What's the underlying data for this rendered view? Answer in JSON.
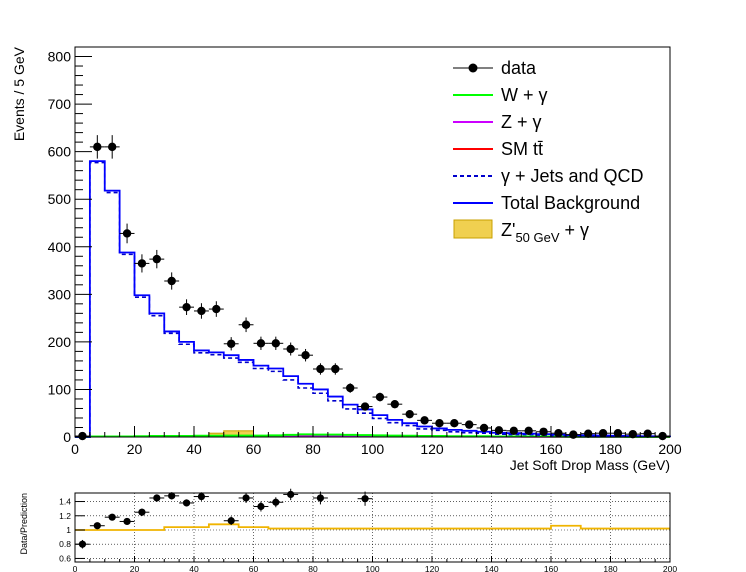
{
  "colors": {
    "data": "#000000",
    "w_gamma": "#00ff00",
    "z_gamma": "#cc00ff",
    "sm_ttbar": "#ff0000",
    "gamma_jets_qcd": "#0000cc",
    "total_background": "#0000ff",
    "signal_fill": "#f0d050",
    "signal_line": "#c8a000",
    "ratio_line": "#f0b400",
    "grid": "#000000"
  },
  "chart_data": [
    {
      "type": "line",
      "title": "",
      "xlabel": "Jet Soft Drop Mass (GeV)",
      "ylabel": "Events / 5 GeV",
      "xlim": [
        0,
        200
      ],
      "ylim": [
        0,
        820
      ],
      "x_ticks": [
        0,
        20,
        40,
        60,
        80,
        100,
        120,
        140,
        160,
        180,
        200
      ],
      "y_ticks": [
        0,
        100,
        200,
        300,
        400,
        500,
        600,
        700,
        800
      ],
      "grid": false,
      "legend_position": "top-right",
      "legend": [
        {
          "key": "data",
          "label": "data",
          "style": "marker"
        },
        {
          "key": "w_gamma",
          "label": "W + γ",
          "style": "line"
        },
        {
          "key": "z_gamma",
          "label": "Z + γ",
          "style": "line"
        },
        {
          "key": "sm_ttbar",
          "label": "SM tt̄",
          "style": "line"
        },
        {
          "key": "gamma_jets_qcd",
          "label": "γ + Jets and QCD",
          "style": "dashed"
        },
        {
          "key": "total_background",
          "label": "Total Background",
          "style": "line"
        },
        {
          "key": "signal",
          "label": "Z'",
          "label_sub": "50 GeV",
          "label_suffix": " + γ",
          "style": "fill"
        }
      ],
      "bin_edges": [
        0,
        5,
        10,
        15,
        20,
        25,
        30,
        35,
        40,
        45,
        50,
        55,
        60,
        65,
        70,
        75,
        80,
        85,
        90,
        95,
        100,
        105,
        110,
        115,
        120,
        125,
        130,
        135,
        140,
        145,
        150,
        155,
        160,
        165,
        170,
        175,
        180,
        185,
        190,
        195,
        200
      ],
      "series": [
        {
          "key": "data",
          "name": "data",
          "x": [
            2.5,
            7.5,
            12.5,
            17.5,
            22.5,
            27.5,
            32.5,
            37.5,
            42.5,
            47.5,
            52.5,
            57.5,
            62.5,
            67.5,
            72.5,
            77.5,
            82.5,
            87.5,
            92.5,
            97.5,
            102.5,
            107.5,
            112.5,
            117.5,
            122.5,
            127.5,
            132.5,
            137.5,
            142.5,
            147.5,
            152.5,
            157.5,
            162.5,
            167.5,
            172.5,
            177.5,
            182.5,
            187.5,
            192.5,
            197.5
          ],
          "y": [
            2,
            610,
            610,
            428,
            365,
            374,
            328,
            273,
            265,
            269,
            196,
            236,
            197,
            197,
            185,
            172,
            143,
            143,
            103,
            64,
            84,
            69,
            48,
            35,
            29,
            29,
            26,
            19,
            14,
            13,
            13,
            11,
            8,
            5,
            7,
            8,
            8,
            6,
            7,
            2
          ],
          "yerr": [
            1.4,
            24.7,
            24.7,
            20.7,
            19.1,
            19.3,
            18.1,
            16.5,
            16.3,
            16.4,
            14.0,
            15.4,
            14.0,
            14.0,
            13.6,
            13.1,
            12.0,
            12.0,
            10.1,
            8.0,
            9.2,
            8.3,
            6.9,
            5.9,
            5.4,
            5.4,
            5.1,
            4.4,
            3.7,
            3.6,
            3.6,
            3.3,
            2.8,
            2.2,
            2.6,
            2.8,
            2.8,
            2.4,
            2.6,
            1.4
          ]
        },
        {
          "key": "total_background",
          "name": "Total Background",
          "values": [
            0,
            580,
            518,
            388,
            298,
            260,
            222,
            200,
            182,
            178,
            172,
            162,
            150,
            144,
            128,
            112,
            100,
            85,
            68,
            58,
            46,
            36,
            29,
            22,
            18,
            15,
            13,
            11,
            9,
            8,
            7,
            6,
            5,
            4,
            3.5,
            3,
            2.5,
            2,
            1.5,
            1
          ]
        },
        {
          "key": "gamma_jets_qcd",
          "name": "γ + Jets and QCD",
          "values": [
            0,
            577,
            514,
            384,
            294,
            255,
            218,
            195,
            177,
            173,
            166,
            157,
            144,
            138,
            120,
            103,
            92,
            76,
            59,
            50,
            39,
            30,
            24,
            17,
            14,
            11,
            9,
            8,
            6,
            5,
            5,
            4,
            3,
            3,
            2.5,
            2,
            1.8,
            1.4,
            1,
            0.7
          ]
        },
        {
          "key": "w_gamma",
          "name": "W + γ",
          "values": [
            0,
            1,
            1,
            1,
            1.5,
            2,
            2,
            2,
            2.5,
            2.5,
            3,
            3,
            3,
            3.5,
            4.5,
            5.5,
            5,
            5,
            4.5,
            4,
            3.5,
            3,
            2.5,
            2,
            2,
            1.5,
            1.5,
            1.5,
            1,
            1,
            1,
            1,
            0.8,
            0.6,
            0.5,
            0.5,
            0.4,
            0.3,
            0.3,
            0.2
          ]
        },
        {
          "key": "z_gamma",
          "name": "Z + γ",
          "values": [
            0,
            0.4,
            0.4,
            0.4,
            0.5,
            0.6,
            0.7,
            0.8,
            0.8,
            0.9,
            1,
            1,
            1.2,
            1.4,
            1.6,
            1.8,
            1.8,
            1.6,
            1.5,
            1.3,
            1.2,
            1,
            0.9,
            0.7,
            0.6,
            0.5,
            0.5,
            0.4,
            0.3,
            0.3,
            0.3,
            0.2,
            0.2,
            0.2,
            0.1,
            0.1,
            0.1,
            0.1,
            0.1,
            0.1
          ]
        },
        {
          "key": "sm_ttbar",
          "name": "SM tt̄",
          "values": [
            0,
            0.4,
            0.5,
            0.6,
            0.8,
            1,
            1.2,
            1.4,
            1.6,
            1.8,
            2,
            2.1,
            2.2,
            2.3,
            2.4,
            2.4,
            2.2,
            2,
            1.8,
            1.6,
            1.4,
            1.2,
            1,
            0.9,
            0.8,
            0.7,
            0.6,
            0.5,
            0.4,
            0.4,
            0.3,
            0.3,
            0.3,
            0.2,
            0.2,
            0.2,
            0.2,
            0.1,
            0.1,
            0.1
          ]
        },
        {
          "key": "signal",
          "name": "Z' 50 GeV + γ",
          "values": [
            0,
            0,
            0,
            0,
            0,
            0,
            0,
            0,
            3,
            8,
            13,
            13,
            3,
            1,
            0,
            0,
            0,
            0,
            0,
            0,
            0,
            0,
            0,
            0,
            0,
            0,
            0,
            0,
            0,
            0,
            0,
            0,
            0,
            0,
            0,
            0,
            0,
            0,
            0,
            0
          ]
        }
      ]
    },
    {
      "type": "scatter",
      "title": "",
      "xlabel": "",
      "ylabel": "Data/Prediction",
      "xlim": [
        0,
        200
      ],
      "ylim": [
        0.55,
        1.52
      ],
      "x_ticks": [
        0,
        20,
        40,
        60,
        80,
        100,
        120,
        140,
        160,
        180,
        200
      ],
      "y_ticks": [
        0.6,
        0.8,
        1,
        1.2,
        1.4
      ],
      "y_tick_labels": [
        "0.6",
        "0.8",
        "1",
        "1.2",
        "1.4"
      ],
      "grid": true,
      "series": [
        {
          "key": "ratio_points",
          "name": "data",
          "x": [
            2.5,
            7.5,
            12.5,
            17.5,
            22.5,
            27.5,
            32.5,
            37.5,
            42.5,
            52.5,
            57.5,
            62.5,
            67.5,
            72.5,
            82.5,
            97.5
          ],
          "y": [
            0.8,
            1.06,
            1.18,
            1.12,
            1.25,
            1.45,
            1.48,
            1.38,
            1.47,
            1.13,
            1.45,
            1.33,
            1.39,
            1.5,
            1.45,
            1.44
          ],
          "yerr": [
            0.06,
            0.03,
            0.04,
            0.04,
            0.05,
            0.05,
            0.05,
            0.05,
            0.06,
            0.06,
            0.07,
            0.07,
            0.07,
            0.08,
            0.09,
            0.1
          ]
        },
        {
          "key": "ratio_line",
          "name": "",
          "values": [
            1,
            1,
            1,
            1,
            1,
            1,
            1.04,
            1.04,
            1.04,
            1.08,
            1.08,
            1.04,
            1.04,
            1.02,
            1.02,
            1.02,
            1.02,
            1.02,
            1.02,
            1.02,
            1.02,
            1.02,
            1.02,
            1.02,
            1.02,
            1.02,
            1.02,
            1.02,
            1.02,
            1.02,
            1.02,
            1.02,
            1.06,
            1.06,
            1.02,
            1.02,
            1.02,
            1.02,
            1.02,
            1.02
          ]
        }
      ]
    }
  ]
}
